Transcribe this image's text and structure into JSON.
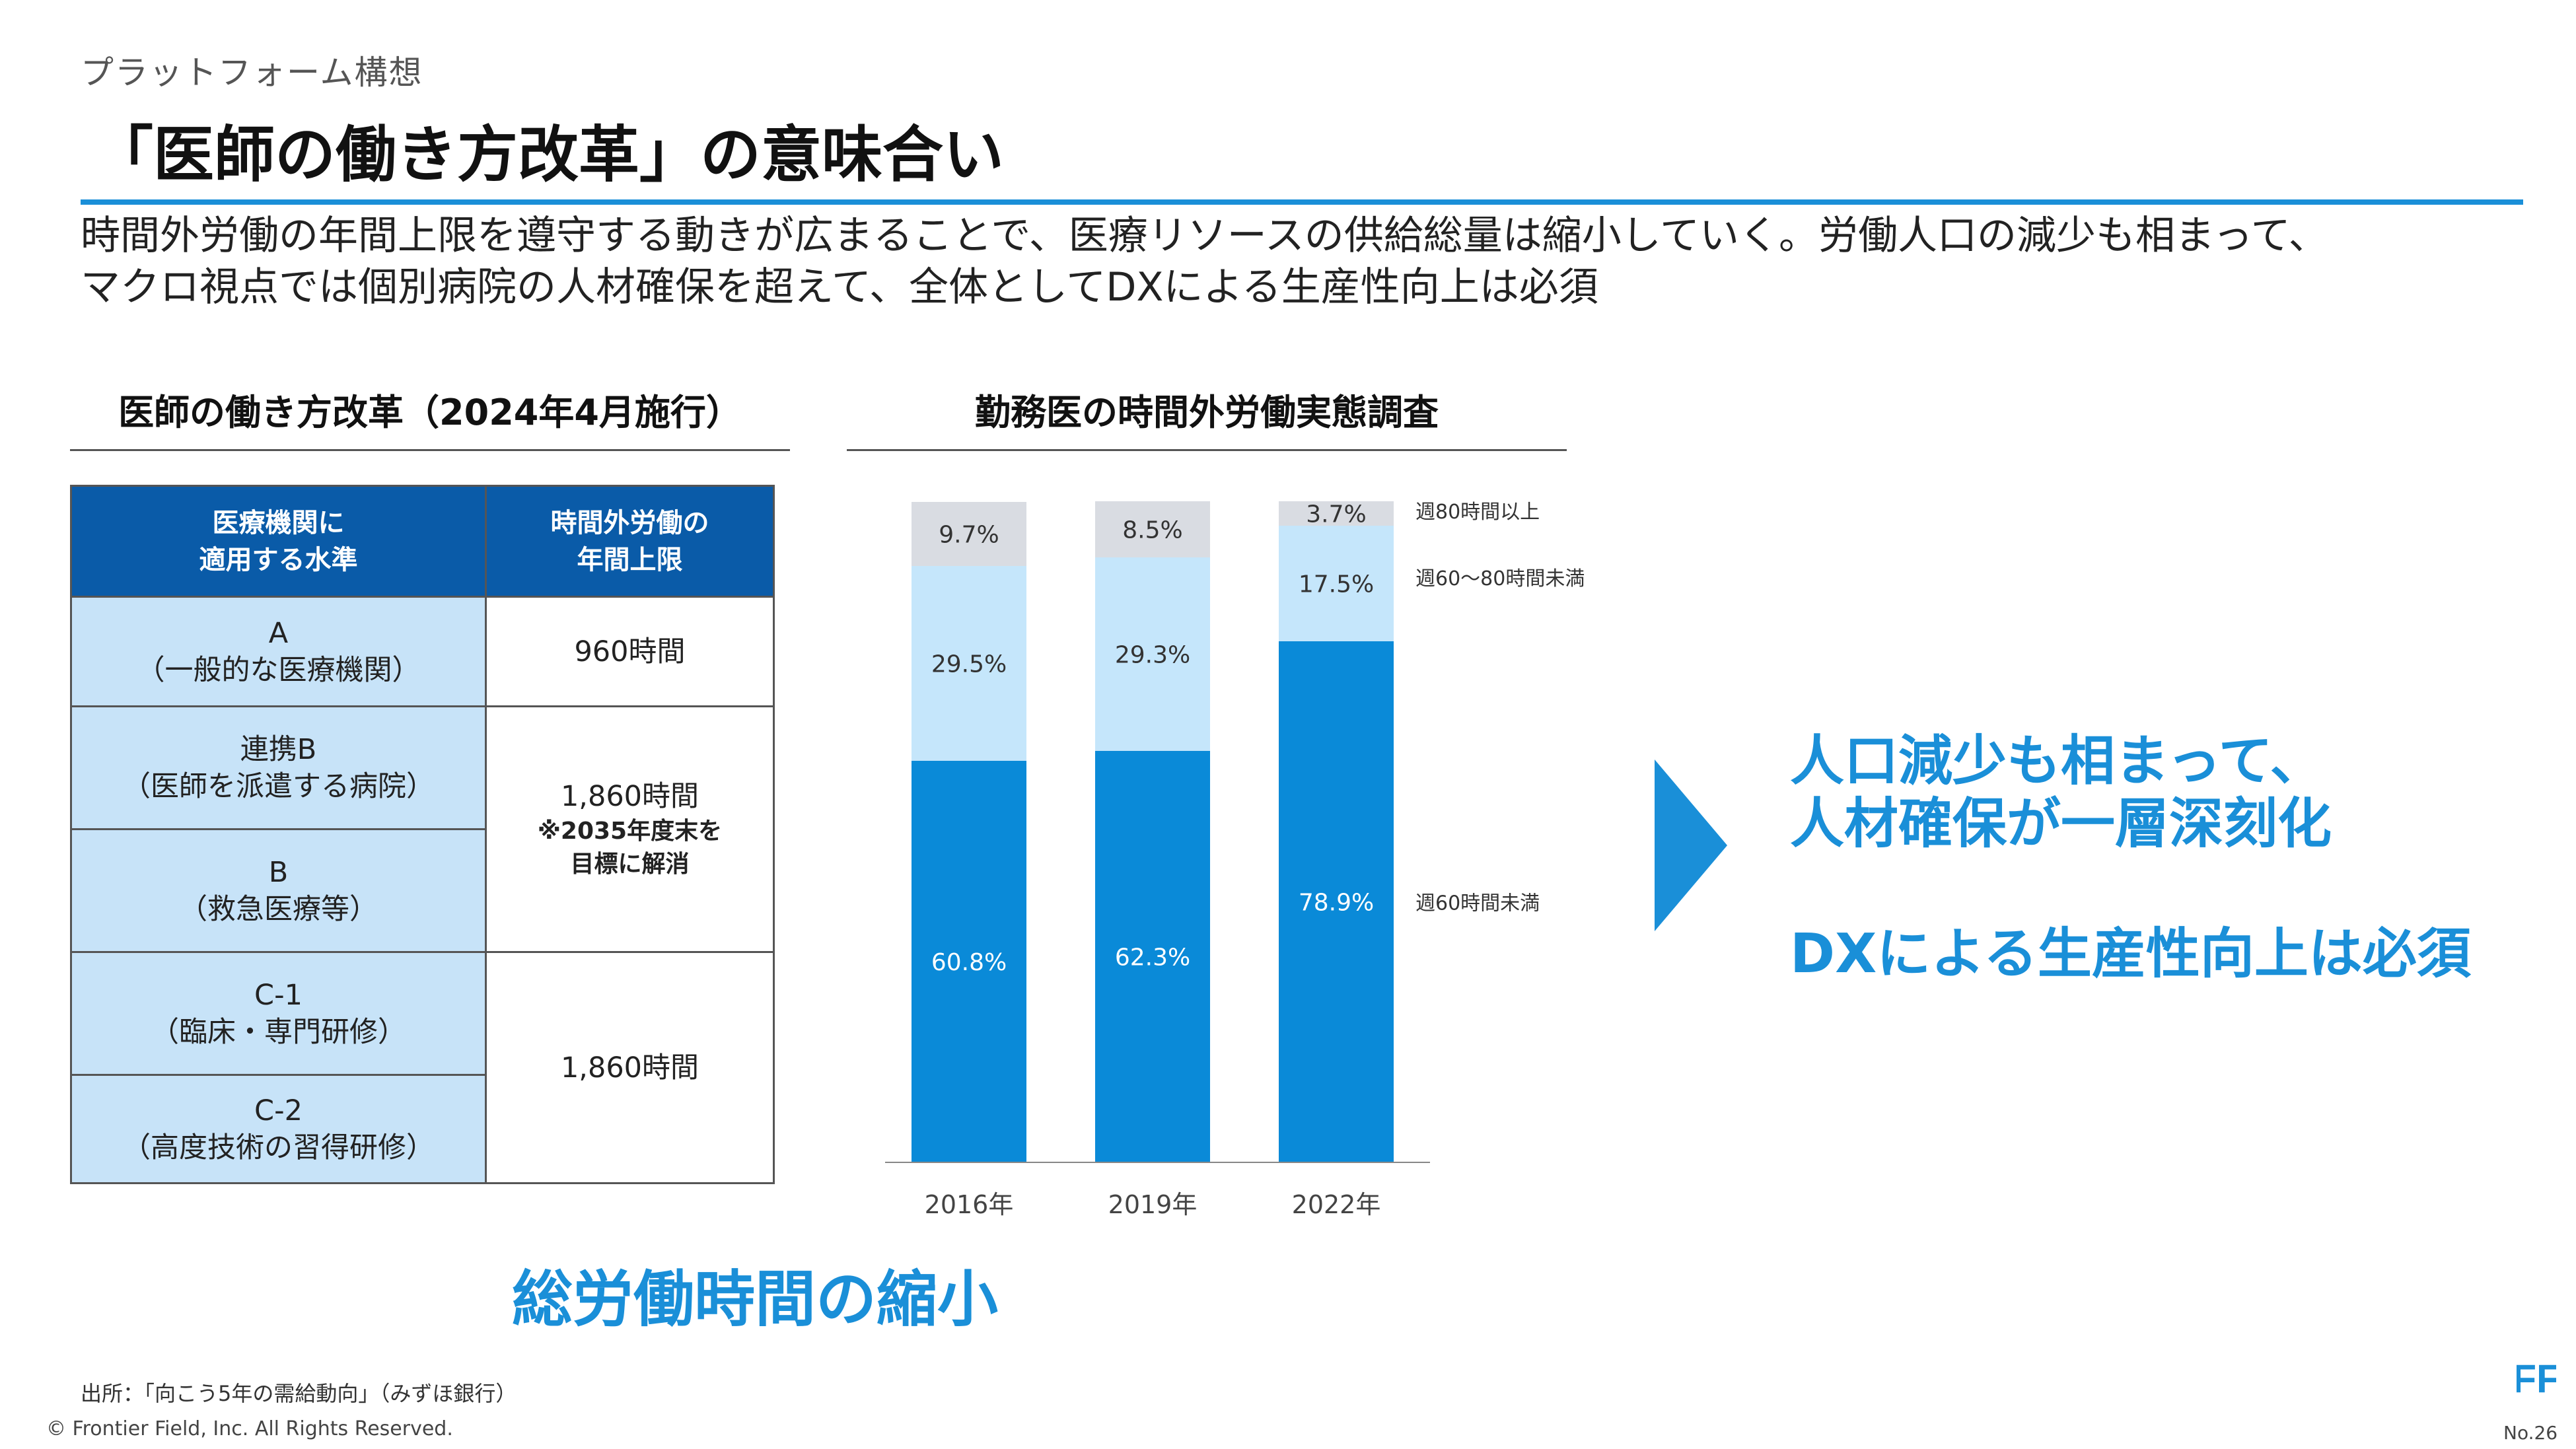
{
  "header": {
    "kicker": "プラットフォーム構想",
    "title": "「医師の働き方改革」の意味合い",
    "lead_line1": "時間外労働の年間上限を遵守する動きが広まることで、医療リソースの供給総量は縮小していく。労働人口の減少も相まって、",
    "lead_line2": "マクロ視点では個別病院の人材確保を超えて、全体としてDXによる生産性向上は必須"
  },
  "reform": {
    "title": "医師の働き方改革（2024年4月施行）",
    "header_col1_line1": "医療機関に",
    "header_col1_line2": "適用する水準",
    "header_col2_line1": "時間外労働の",
    "header_col2_line2": "年間上限",
    "rows": [
      {
        "name": "A",
        "desc": "（一般的な医療機関）"
      },
      {
        "name": "連携B",
        "desc": "（医師を派遣する病院）"
      },
      {
        "name": "B",
        "desc": "（救急医療等）"
      },
      {
        "name": "C-1",
        "desc": "（臨床・専門研修）"
      },
      {
        "name": "C-2",
        "desc": "（高度技術の習得研修）"
      }
    ],
    "limit_a": "960時間",
    "limit_b": "1,860時間",
    "limit_b_note_line1": "※2035年度末を",
    "limit_b_note_line2": "目標に解消",
    "limit_c": "1,860時間"
  },
  "chart_data": {
    "type": "bar",
    "stacked": true,
    "title": "勤務医の時間外労働実態調査",
    "categories": [
      "2016年",
      "2019年",
      "2022年"
    ],
    "series": [
      {
        "name": "週60時間未満",
        "values": [
          60.8,
          62.3,
          78.9
        ],
        "labels": [
          "60.8%",
          "62.3%",
          "78.9%"
        ],
        "color": "#0a8ad8",
        "label_color": "#ffffff"
      },
      {
        "name": "週60～80時間未満",
        "values": [
          29.5,
          29.3,
          17.5
        ],
        "labels": [
          "29.5%",
          "29.3%",
          "17.5%"
        ],
        "color": "#c5e6fb",
        "label_color": "#333333"
      },
      {
        "name": "週80時間以上",
        "values": [
          9.7,
          8.5,
          3.7
        ],
        "labels": [
          "9.7%",
          "8.5%",
          "3.7%"
        ],
        "color": "#d9dce2",
        "label_color": "#333333"
      }
    ],
    "ylim": [
      0,
      100
    ],
    "grid": false,
    "legend": "right"
  },
  "callout": {
    "line1": "人口減少も相まって、",
    "line2": "人材確保が一層深刻化",
    "line3": "DXによる生産性向上は必須"
  },
  "summary": "総労働時間の縮小",
  "footer": {
    "source": "出所：「向こう5年の需給動向」（みずほ銀行）",
    "copyright": "© Frontier Field, Inc. All Rights Reserved.",
    "page_number": "No.26",
    "logo_mark": "FF"
  },
  "colors": {
    "accent": "#1a8fd8",
    "table_header": "#0a5ba8",
    "table_level": "#c7e3f8"
  }
}
